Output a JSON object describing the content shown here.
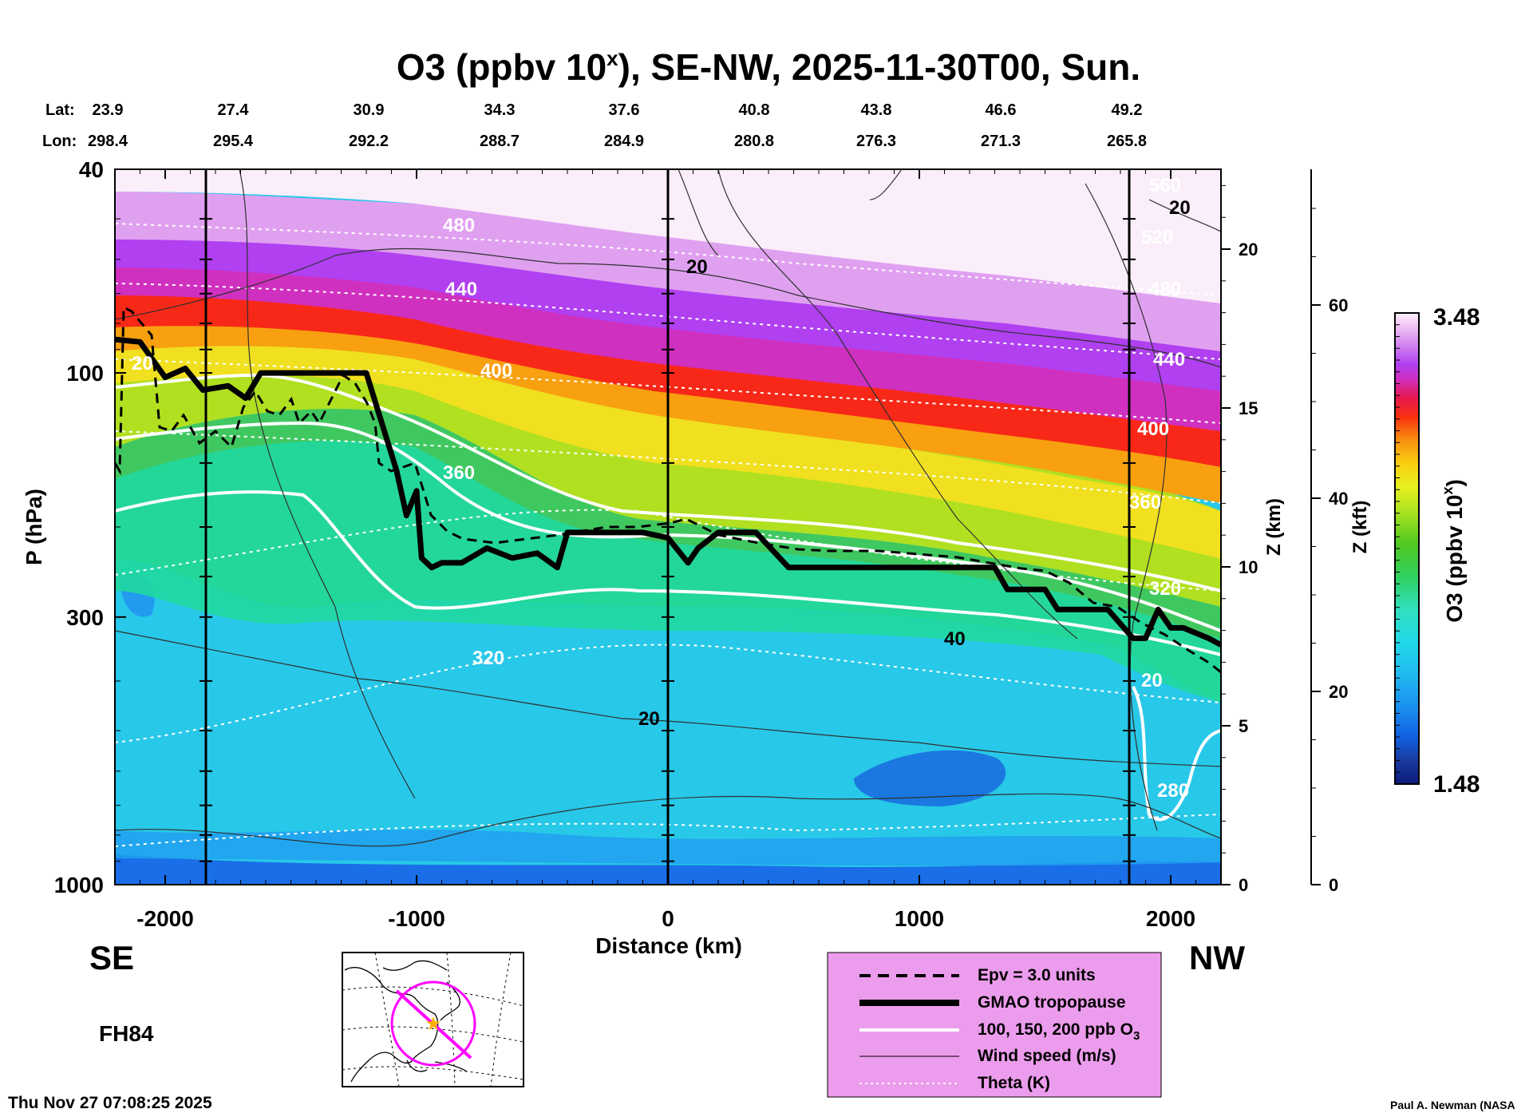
{
  "chart_data": {
    "type": "heatmap",
    "title_main": "O3 (ppbv 10",
    "title_sup": "x",
    "title_rest": "), SE-NW, 2025-11-30T00, Sun.",
    "lat_label": "Lat:",
    "lon_label": "Lon:",
    "lat": [
      "23.9",
      "27.4",
      "30.9",
      "34.3",
      "37.6",
      "40.8",
      "43.8",
      "46.6",
      "49.2"
    ],
    "lon": [
      "298.4",
      "295.4",
      "292.2",
      "288.7",
      "284.9",
      "280.8",
      "276.3",
      "271.3",
      "265.8"
    ],
    "xlabel": "Distance (km)",
    "xlim": [
      -2200,
      2200
    ],
    "xticks": [
      "-2000",
      "-1000",
      "0",
      "1000",
      "2000"
    ],
    "ylabel": "P (hPa)",
    "ylim": [
      1000,
      40
    ],
    "yticks": [
      "40",
      "100",
      "300",
      "1000"
    ],
    "z_km_label": "Z (km)",
    "z_km_ticks": [
      "0",
      "5",
      "10",
      "15",
      "20"
    ],
    "z_kft_label": "Z (kft)",
    "z_kft_ticks": [
      "0",
      "20",
      "40",
      "60"
    ],
    "colorbar": {
      "label_main": "O3 (ppbv 10",
      "label_sup": "x",
      "label_rest": ")",
      "min": "1.48",
      "max": "3.48"
    },
    "left_end": "SE",
    "right_end": "NW",
    "forecast_hour": "FH84",
    "timestamp": "Thu Nov 27 07:08:25 2025",
    "credit": "Paul A. Newman (NASA",
    "contour_labels_theta": [
      "480",
      "440",
      "400",
      "360",
      "320",
      "280",
      "520",
      "560"
    ],
    "contour_labels_wind": [
      "20",
      "40"
    ],
    "tropopause": {
      "x_km": [
        -2200,
        -2100,
        -2000,
        -1920,
        -1850,
        -1750,
        -1680,
        -1620,
        -1400,
        -1200,
        -1080,
        -1040,
        -1000,
        -980,
        -940,
        -900,
        -820,
        -720,
        -620,
        -520,
        -440,
        -400,
        -300,
        -100,
        0,
        80,
        120,
        200,
        350,
        480,
        500,
        800,
        1300,
        1350,
        1500,
        1550,
        1750,
        1850,
        1900,
        1950,
        2000,
        2050,
        2150,
        2200
      ],
      "p_hpa": [
        86,
        87,
        102,
        98,
        108,
        106,
        112,
        100,
        100,
        100,
        155,
        190,
        170,
        230,
        240,
        235,
        235,
        220,
        230,
        225,
        240,
        205,
        205,
        205,
        210,
        235,
        220,
        205,
        205,
        240,
        240,
        240,
        240,
        265,
        265,
        290,
        290,
        330,
        330,
        290,
        315,
        315,
        330,
        340
      ]
    },
    "legend": [
      "Epv = 3.0 units",
      "GMAO tropopause",
      "100, 150, 200 ppb O",
      "Wind speed (m/s)",
      "Theta (K)"
    ],
    "legend_sub": "3"
  },
  "colors": {
    "legend_bg": "#EC9CEC",
    "map_circle": "#FF00FF",
    "map_star": "#FFB000"
  }
}
